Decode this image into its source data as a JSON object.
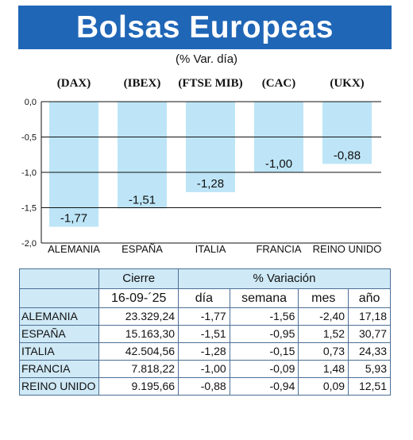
{
  "header": {
    "title": "Bolsas Europeas",
    "subtitle": "(% Var. día)"
  },
  "colors": {
    "banner": "#1f66b6",
    "bar": "#bde5f7",
    "table_header": "#cfe9f6"
  },
  "chart_data": {
    "type": "bar",
    "categories": [
      "ALEMANIA",
      "ESPAÑA",
      "ITALIA",
      "FRANCIA",
      "REINO UNIDO"
    ],
    "indices": [
      "(DAX)",
      "(IBEX)",
      "(FTSE MIB)",
      "(CAC)",
      "(UKX)"
    ],
    "values": [
      -1.77,
      -1.51,
      -1.28,
      -1.0,
      -0.88
    ],
    "value_labels": [
      "-1,77",
      "-1,51",
      "-1,28",
      "-1,00",
      "-0,88"
    ],
    "ylim": [
      -2.0,
      0.0
    ],
    "yticks": [
      0.0,
      -0.5,
      -1.0,
      -1.5,
      -2.0
    ],
    "ytick_labels": [
      "0,0",
      "-0,5",
      "-1,0",
      "-1,5",
      "-2,0"
    ],
    "grid": true
  },
  "table": {
    "group_headers": [
      "Cierre",
      "% Variación"
    ],
    "columns": [
      "16-09-´25",
      "día",
      "semana",
      "mes",
      "año"
    ],
    "rows": [
      {
        "name": "ALEMANIA",
        "cierre": "23.329,24",
        "dia": "-1,77",
        "semana": "-1,56",
        "mes": "-2,40",
        "anio": "17,18"
      },
      {
        "name": "ESPAÑA",
        "cierre": "15.163,30",
        "dia": "-1,51",
        "semana": "-0,95",
        "mes": "1,52",
        "anio": "30,77"
      },
      {
        "name": "ITALIA",
        "cierre": "42.504,56",
        "dia": "-1,28",
        "semana": "-0,15",
        "mes": "0,73",
        "anio": "24,33"
      },
      {
        "name": "FRANCIA",
        "cierre": "7.818,22",
        "dia": "-1,00",
        "semana": "-0,09",
        "mes": "1,48",
        "anio": "5,93"
      },
      {
        "name": "REINO UNIDO",
        "cierre": "9.195,66",
        "dia": "-0,88",
        "semana": "-0,94",
        "mes": "0,09",
        "anio": "12,51"
      }
    ]
  }
}
